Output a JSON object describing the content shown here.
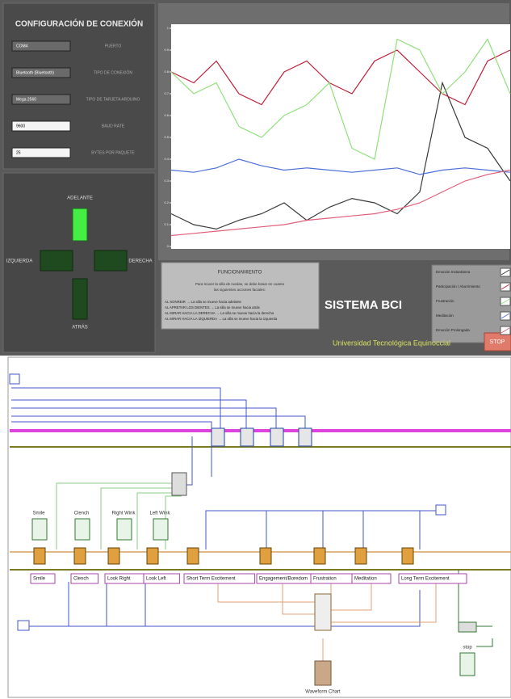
{
  "front_panel": {
    "config_title": "CONFIGURACIÓN DE CONEXIÓN",
    "controls": [
      {
        "value": "COM4",
        "label": "PUERTO"
      },
      {
        "value": "Bluetooth (Bluetooth)",
        "label": "TIPO DE CONEXIÓN"
      },
      {
        "value": "Mega 2560",
        "label": "TIPO DE TARJETA ARDUINO"
      },
      {
        "value": "9600",
        "label": "BAUD RATE"
      },
      {
        "value": "25",
        "label": "BYTES POR PAQUETE"
      }
    ],
    "directions": {
      "up": "ADELANTE",
      "left": "IZQUIERDA",
      "right": "DERECHA",
      "down": "ATRÁS"
    },
    "instructions": {
      "title": "FUNCIONAMIENTO",
      "intro": [
        "Para mover la silla de ruedas, se debe basar en cuanto",
        "las siguientes acciones faciales:"
      ],
      "items": [
        "AL SONREIR → La silla se mueve hacia adelante",
        "AL APRETAR LOS DIENTES → La silla se mueve hacia atrás",
        "AL MIRAR HACIA LA DERECHA → La silla se mueve hacia la derecha",
        "AL MIRAR HACIA LA IZQUIERDA → La silla se mueve hacia la izquierda"
      ]
    },
    "system_title": "SISTEMA BCI",
    "university": "Universidad Tecnológica Equinoccial",
    "stop": "STOP",
    "chart": {
      "type": "line",
      "ylim": [
        0,
        1
      ],
      "yticks": [
        0,
        0.1,
        0.2,
        0.3,
        0.4,
        0.5,
        0.6,
        0.7,
        0.8,
        0.9,
        1
      ],
      "series": [
        {
          "name": "Emoción Instantánea",
          "color": "#3a3a3a",
          "values": [
            0.15,
            0.1,
            0.08,
            0.12,
            0.15,
            0.2,
            0.12,
            0.18,
            0.22,
            0.2,
            0.15,
            0.25,
            0.75,
            0.5,
            0.45,
            0.3
          ]
        },
        {
          "name": "Participación / Aburrimiento",
          "color": "#c0203a",
          "values": [
            0.8,
            0.75,
            0.85,
            0.7,
            0.65,
            0.8,
            0.85,
            0.75,
            0.7,
            0.85,
            0.9,
            0.8,
            0.7,
            0.65,
            0.85,
            0.9
          ]
        },
        {
          "name": "Frustración",
          "color": "#8fe07a",
          "values": [
            0.8,
            0.7,
            0.75,
            0.55,
            0.5,
            0.6,
            0.65,
            0.75,
            0.45,
            0.4,
            0.95,
            0.9,
            0.7,
            0.8,
            0.95,
            0.7
          ]
        },
        {
          "name": "Meditación",
          "color": "#4d6fd8",
          "values": [
            0.35,
            0.34,
            0.36,
            0.4,
            0.37,
            0.35,
            0.36,
            0.35,
            0.34,
            0.35,
            0.36,
            0.33,
            0.35,
            0.36,
            0.35,
            0.34
          ]
        },
        {
          "name": "Emoción Prolongada",
          "color": "#e0607a",
          "values": [
            0.05,
            0.06,
            0.07,
            0.08,
            0.09,
            0.1,
            0.12,
            0.13,
            0.14,
            0.15,
            0.17,
            0.2,
            0.25,
            0.3,
            0.33,
            0.35
          ]
        }
      ]
    }
  },
  "block_diagram": {
    "indicators": [
      "Smile",
      "Clench",
      "Right Wink",
      "Left Wink"
    ],
    "selectors": [
      "Smile",
      "Clench",
      "Look Right",
      "Look Left",
      "Short Term Excitement",
      "Engagement/Boredom",
      "Frustration",
      "Meditation",
      "Long Term Excitement"
    ],
    "waveform": "Waveform Chart",
    "stop": "stop"
  }
}
